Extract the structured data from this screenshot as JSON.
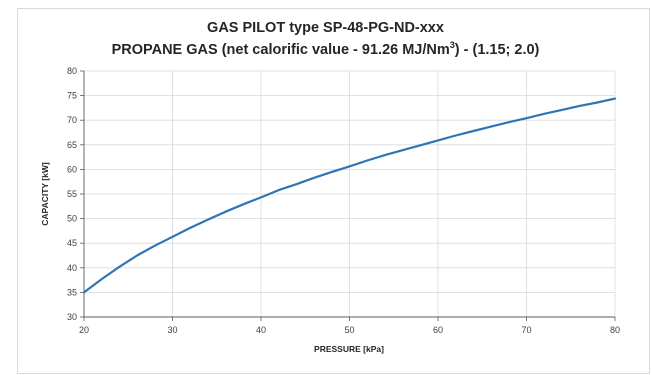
{
  "chart_data": {
    "type": "line",
    "title": "GAS PILOT type SP-48-PG-ND-xxx",
    "subtitle_prefix": "PROPANE GAS (net calorific value - 91.26 MJ/Nm",
    "subtitle_sup": "3",
    "subtitle_suffix": ") - (1.15; 2.0)",
    "xlabel": "PRESSURE [kPa]",
    "ylabel": "CAPACITY [kW]",
    "xlim": [
      20,
      80
    ],
    "ylim": [
      30,
      80
    ],
    "xticks": [
      "20",
      "30",
      "40",
      "50",
      "60",
      "70",
      "80"
    ],
    "yticks": [
      "30",
      "35",
      "40",
      "45",
      "50",
      "55",
      "60",
      "65",
      "70",
      "75",
      "80"
    ],
    "grid": true,
    "legend": "none",
    "series": [
      {
        "color": "#2e75b6",
        "x": [
          20,
          22,
          24,
          26,
          28,
          30,
          32,
          34,
          36,
          38,
          40,
          42,
          44,
          46,
          48,
          50,
          52,
          54,
          56,
          58,
          60,
          62,
          64,
          66,
          68,
          70,
          72,
          74,
          76,
          78,
          80
        ],
        "y": [
          35.0,
          37.7,
          40.2,
          42.5,
          44.5,
          46.3,
          48.1,
          49.8,
          51.4,
          52.9,
          54.3,
          55.8,
          57.0,
          58.3,
          59.5,
          60.6,
          61.8,
          62.9,
          63.9,
          64.9,
          65.9,
          66.9,
          67.8,
          68.7,
          69.6,
          70.4,
          71.3,
          72.1,
          72.9,
          73.6,
          74.4
        ]
      }
    ]
  }
}
